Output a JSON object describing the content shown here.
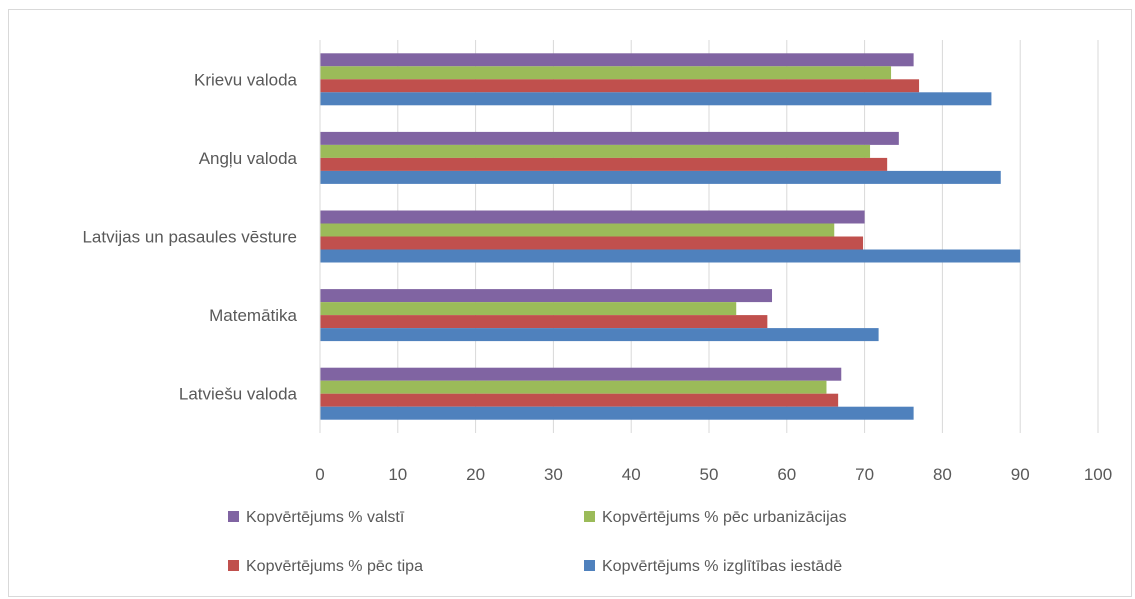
{
  "chart_data": {
    "type": "bar",
    "orientation": "horizontal",
    "categories": [
      "Latviešu valoda",
      "Matemātika",
      "Latvijas un pasaules vēsture",
      "Angļu valoda",
      "Krievu valoda"
    ],
    "series": [
      {
        "name": "Kopvērtējums % valstī",
        "color": "#8064a2",
        "values": [
          67.0,
          58.1,
          70.0,
          74.4,
          76.3
        ]
      },
      {
        "name": "Kopvērtējums % pēc urbanizācijas",
        "color": "#9bbb59",
        "values": [
          65.1,
          53.5,
          66.1,
          70.7,
          73.4
        ]
      },
      {
        "name": "Kopvērtējums % pēc tipa",
        "color": "#c0504d",
        "values": [
          66.6,
          57.5,
          69.8,
          72.9,
          77.0
        ]
      },
      {
        "name": "Kopvērtējums % izglītības iestādē",
        "color": "#4f81bd",
        "values": [
          76.3,
          71.8,
          90.0,
          87.5,
          86.3
        ]
      }
    ],
    "xticks": [
      "0",
      "10",
      "20",
      "30",
      "40",
      "50",
      "60",
      "70",
      "80",
      "90",
      "100"
    ],
    "xlim": [
      0,
      100
    ],
    "grid": true,
    "legend_position": "bottom",
    "title": "",
    "xlabel": "",
    "ylabel": ""
  }
}
